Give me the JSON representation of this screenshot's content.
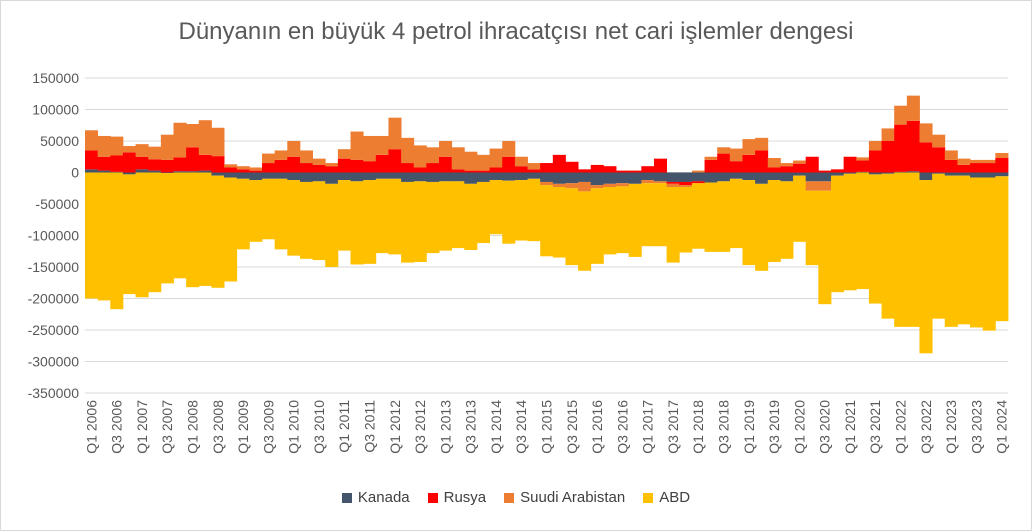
{
  "chart_data": {
    "type": "bar",
    "stacked": true,
    "title": "Dünyanın en büyük 4 petrol ihracatçısı net cari işlemler dengesi",
    "xlabel": "",
    "ylabel": "",
    "ylim": [
      -350000,
      150000
    ],
    "y_ticks": [
      "150000",
      "100000",
      "50000",
      "0",
      "-50000",
      "-100000",
      "-150000",
      "-200000",
      "-250000",
      "-300000",
      "-350000"
    ],
    "grid": true,
    "legend_position": "bottom",
    "categories": [
      "Q1 2006",
      "Q2 2006",
      "Q3 2006",
      "Q4 2006",
      "Q1 2007",
      "Q2 2007",
      "Q3 2007",
      "Q4 2007",
      "Q1 2008",
      "Q2 2008",
      "Q3 2008",
      "Q4 2008",
      "Q1 2009",
      "Q2 2009",
      "Q3 2009",
      "Q4 2009",
      "Q1 2010",
      "Q2 2010",
      "Q3 2010",
      "Q4 2010",
      "Q1 2011",
      "Q2 2011",
      "Q3 2011",
      "Q4 2011",
      "Q1 2012",
      "Q2 2012",
      "Q3 2012",
      "Q4 2012",
      "Q1 2013",
      "Q2 2013",
      "Q3 2013",
      "Q4 2013",
      "Q1 2014",
      "Q2 2014",
      "Q3 2014",
      "Q4 2014",
      "Q1 2015",
      "Q2 2015",
      "Q3 2015",
      "Q4 2015",
      "Q1 2016",
      "Q2 2016",
      "Q3 2016",
      "Q4 2016",
      "Q1 2017",
      "Q2 2017",
      "Q3 2017",
      "Q4 2017",
      "Q1 2018",
      "Q2 2018",
      "Q3 2018",
      "Q4 2018",
      "Q1 2019",
      "Q2 2019",
      "Q3 2019",
      "Q4 2019",
      "Q1 2020",
      "Q2 2020",
      "Q3 2020",
      "Q4 2020",
      "Q1 2021",
      "Q2 2021",
      "Q3 2021",
      "Q4 2021",
      "Q1 2022",
      "Q2 2022",
      "Q3 2022",
      "Q4 2022",
      "Q1 2023",
      "Q2 2023",
      "Q3 2023",
      "Q4 2023",
      "Q1 2024"
    ],
    "x_tick_labels": [
      "Q1 2006",
      "Q3 2006",
      "Q1 2007",
      "Q3 2007",
      "Q1 2008",
      "Q3 2008",
      "Q1 2009",
      "Q3 2009",
      "Q1 2010",
      "Q3 2010",
      "Q1 2011",
      "Q3 2011",
      "Q1 2012",
      "Q3 2012",
      "Q1 2013",
      "Q3 2013",
      "Q1 2014",
      "Q3 2014",
      "Q1 2015",
      "Q3 2015",
      "Q1 2016",
      "Q3 2016",
      "Q1 2017",
      "Q3 2017",
      "Q1 2018",
      "Q3 2018",
      "Q1 2019",
      "Q3 2019",
      "Q1 2020",
      "Q3 2020",
      "Q1 2021",
      "Q3 2021",
      "Q1 2022",
      "Q3 2022",
      "Q1 2023",
      "Q3 2023",
      "Q1 2024"
    ],
    "series": [
      {
        "name": "Kanada",
        "color": "#44546a",
        "values": [
          5000,
          3000,
          1000,
          -3000,
          5000,
          3000,
          -1000,
          2000,
          2000,
          3000,
          -5000,
          -8000,
          -10000,
          -12000,
          -10000,
          -10000,
          -12000,
          -15000,
          -14000,
          -18000,
          -12000,
          -14000,
          -12000,
          -10000,
          -10000,
          -15000,
          -14000,
          -15000,
          -14000,
          -14000,
          -18000,
          -15000,
          -12000,
          -13000,
          -12000,
          -10000,
          -15000,
          -18000,
          -17000,
          -15000,
          -20000,
          -18000,
          -17000,
          -18000,
          -12000,
          -14000,
          -15000,
          -15000,
          -14000,
          -16000,
          -14000,
          -10000,
          -12000,
          -18000,
          -12000,
          -14000,
          -5000,
          -14000,
          -14000,
          -5000,
          -2000,
          1000,
          -3000,
          -2000,
          1000,
          2000,
          -12000,
          -2000,
          -5000,
          -5000,
          -8000,
          -8000,
          -6000
        ]
      },
      {
        "name": "Rusya",
        "color": "#ff0000",
        "values": [
          30000,
          22000,
          26000,
          32000,
          20000,
          18000,
          20000,
          22000,
          38000,
          25000,
          26000,
          8000,
          5000,
          3000,
          15000,
          20000,
          25000,
          15000,
          12000,
          10000,
          22000,
          20000,
          18000,
          28000,
          37000,
          15000,
          8000,
          15000,
          25000,
          5000,
          3000,
          3000,
          8000,
          25000,
          10000,
          5000,
          15000,
          28000,
          17000,
          5000,
          12000,
          10000,
          3000,
          3000,
          10000,
          22000,
          -3000,
          -5000,
          -3000,
          20000,
          30000,
          18000,
          28000,
          35000,
          8000,
          10000,
          14000,
          25000,
          3000,
          5000,
          25000,
          18000,
          35000,
          50000,
          75000,
          80000,
          48000,
          40000,
          20000,
          12000,
          15000,
          15000,
          23000
        ]
      },
      {
        "name": "Suudi Arabistan",
        "color": "#ed7d31",
        "values": [
          32000,
          33000,
          30000,
          10000,
          20000,
          20000,
          40000,
          55000,
          37000,
          55000,
          45000,
          5000,
          5000,
          5000,
          15000,
          15000,
          25000,
          20000,
          10000,
          5000,
          15000,
          45000,
          40000,
          30000,
          50000,
          40000,
          35000,
          25000,
          25000,
          35000,
          30000,
          25000,
          30000,
          25000,
          15000,
          10000,
          -5000,
          -5000,
          -8000,
          -15000,
          -5000,
          -5000,
          -5000,
          0,
          -5000,
          -3000,
          -5000,
          -3000,
          3000,
          5000,
          10000,
          20000,
          25000,
          20000,
          15000,
          5000,
          5000,
          -15000,
          -15000,
          0,
          0,
          5000,
          15000,
          20000,
          30000,
          40000,
          30000,
          20000,
          15000,
          10000,
          5000,
          5000,
          8000
        ]
      },
      {
        "name": "ABD",
        "color": "#ffc000",
        "values": [
          -200000,
          -203000,
          -217000,
          -190000,
          -198000,
          -190000,
          -175000,
          -168000,
          -182000,
          -180000,
          -178000,
          -165000,
          -112000,
          -98000,
          -96000,
          -112000,
          -120000,
          -122000,
          -125000,
          -132000,
          -112000,
          -132000,
          -133000,
          -118000,
          -120000,
          -128000,
          -128000,
          -113000,
          -110000,
          -106000,
          -105000,
          -97000,
          -86000,
          -100000,
          -96000,
          -99000,
          -113000,
          -112000,
          -122000,
          -126000,
          -120000,
          -107000,
          -106000,
          -116000,
          -100000,
          -100000,
          -120000,
          -104000,
          -104000,
          -110000,
          -112000,
          -110000,
          -135000,
          -138000,
          -130000,
          -123000,
          -105000,
          -118000,
          -180000,
          -185000,
          -185000,
          -185000,
          -205000,
          -230000,
          -245000,
          -245000,
          -275000,
          -230000,
          -240000,
          -236000,
          -238000,
          -243000,
          -230000
        ]
      }
    ]
  }
}
